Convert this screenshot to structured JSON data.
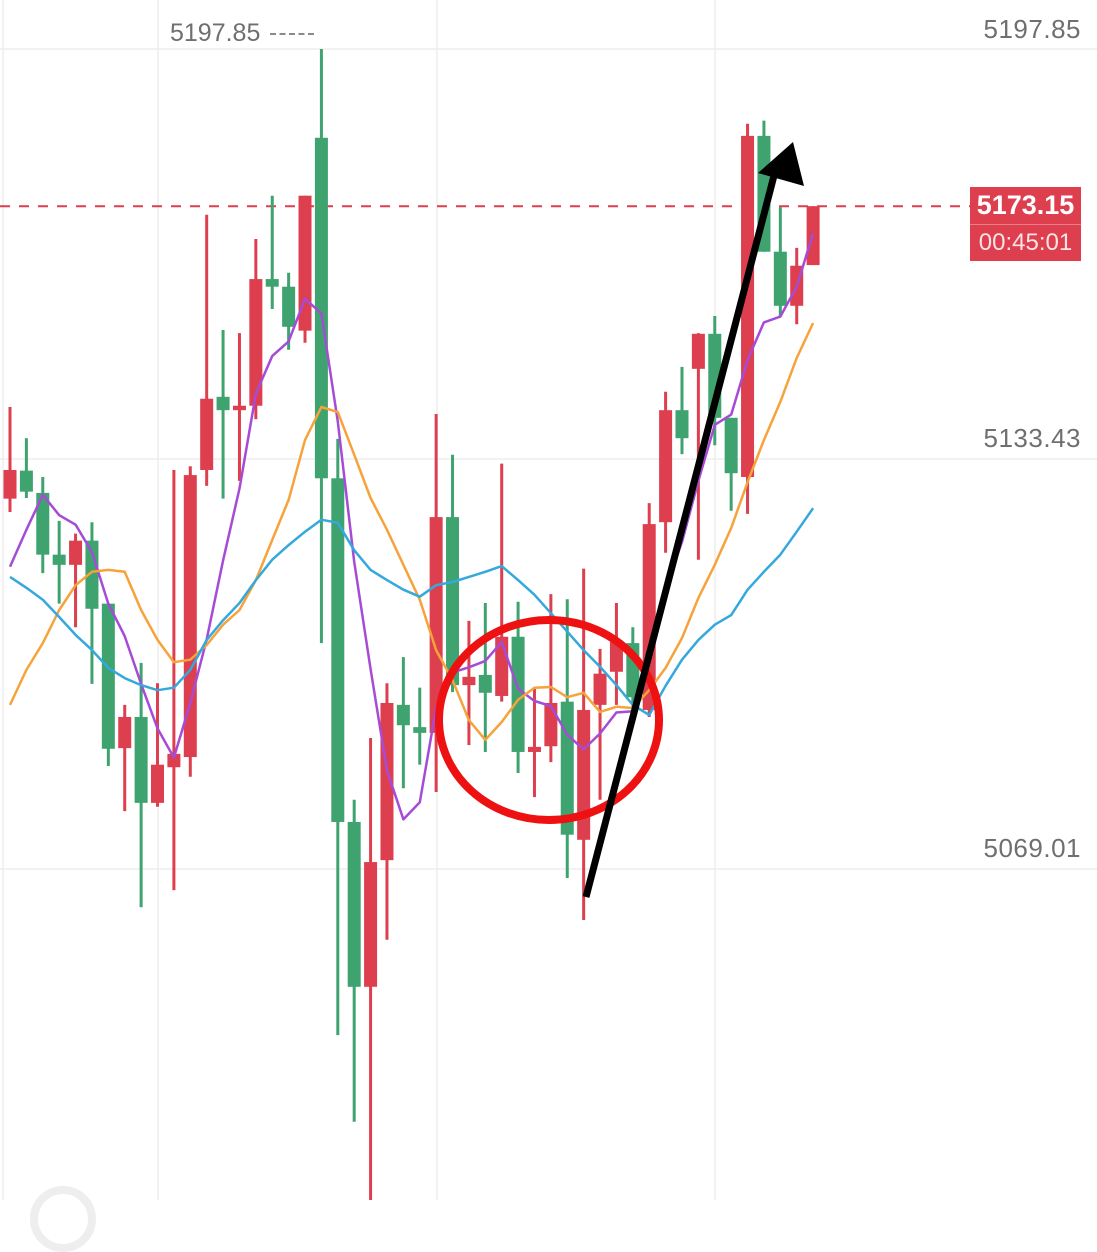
{
  "chart_data": {
    "type": "candlestick",
    "up_color": "#dd3f4e",
    "down_color": "#3fa36f",
    "y_ticks": [
      "5197.85",
      "5133.43",
      "5069.01"
    ],
    "ylim": [
      5010,
      5205
    ],
    "grid": true,
    "high_marker": "5197.85",
    "last_price": "5173.15",
    "countdown": "00:45:01",
    "candles_ohlc": [
      [
        5127.2,
        5141.6,
        5125.1,
        5131.7
      ],
      [
        5131.6,
        5136.7,
        5127.3,
        5128.3
      ],
      [
        5128.1,
        5130.6,
        5115.5,
        5118.4
      ],
      [
        5118.4,
        5123.7,
        5110.7,
        5116.8
      ],
      [
        5116.8,
        5121.7,
        5107.0,
        5120.6
      ],
      [
        5120.6,
        5123.5,
        5098.1,
        5109.9
      ],
      [
        5110.7,
        5110.7,
        5085.2,
        5087.9
      ],
      [
        5088.0,
        5094.8,
        5078.1,
        5092.9
      ],
      [
        5092.9,
        5101.4,
        5063.0,
        5079.4
      ],
      [
        5079.4,
        5098.2,
        5078.8,
        5085.4
      ],
      [
        5085.0,
        5131.7,
        5065.7,
        5087.1
      ],
      [
        5086.6,
        5132.3,
        5083.5,
        5130.9
      ],
      [
        5131.7,
        5171.8,
        5129.2,
        5142.9
      ],
      [
        5143.2,
        5153.7,
        5127.2,
        5141.1
      ],
      [
        5141.1,
        5153.2,
        5130.0,
        5141.8
      ],
      [
        5141.8,
        5168.0,
        5139.7,
        5161.7
      ],
      [
        5161.7,
        5174.8,
        5157.0,
        5160.5
      ],
      [
        5160.5,
        5162.7,
        5150.6,
        5154.2
      ],
      [
        5153.6,
        5174.8,
        5151.7,
        5174.8
      ],
      [
        5183.9,
        5197.85,
        5104.5,
        5130.4
      ],
      [
        5130.4,
        5136.6,
        5042.9,
        5076.4
      ],
      [
        5076.4,
        5079.9,
        5029.3,
        5050.5
      ],
      [
        5050.5,
        5089.6,
        5016.2,
        5070.1
      ],
      [
        5070.4,
        5098.2,
        5057.9,
        5095.1
      ],
      [
        5094.8,
        5102.3,
        5081.7,
        5091.6
      ],
      [
        5091.3,
        5097.5,
        5085.4,
        5090.4
      ],
      [
        5090.4,
        5140.5,
        5081.1,
        5124.3
      ],
      [
        5124.3,
        5134.1,
        5096.8,
        5097.9
      ],
      [
        5097.9,
        5108.0,
        5088.5,
        5099.2
      ],
      [
        5099.5,
        5110.8,
        5087.4,
        5096.7
      ],
      [
        5096.2,
        5132.7,
        5095.3,
        5105.5
      ],
      [
        5105.5,
        5111.0,
        5084.1,
        5087.4
      ],
      [
        5087.4,
        5097.3,
        5080.3,
        5088.2
      ],
      [
        5088.3,
        5112.2,
        5085.8,
        5095.1
      ],
      [
        5095.3,
        5111.4,
        5067.6,
        5074.4
      ],
      [
        5073.6,
        5116.2,
        5061.0,
        5094.0
      ],
      [
        5094.8,
        5103.6,
        5079.9,
        5099.7
      ],
      [
        5100.0,
        5110.8,
        5094.8,
        5104.7
      ],
      [
        5104.5,
        5107.0,
        5092.9,
        5096.0
      ],
      [
        5094.0,
        5126.5,
        5092.9,
        5123.2
      ],
      [
        5123.5,
        5144.0,
        5118.7,
        5141.1
      ],
      [
        5141.1,
        5147.9,
        5134.2,
        5136.7
      ],
      [
        5147.6,
        5153.2,
        5117.6,
        5153.1
      ],
      [
        5153.1,
        5155.9,
        5135.6,
        5139.9
      ],
      [
        5139.9,
        5139.9,
        5125.3,
        5131.2
      ],
      [
        5130.6,
        5186.1,
        5124.8,
        5184.2
      ],
      [
        5184.2,
        5186.6,
        5166.0,
        5166.0
      ],
      [
        5166.0,
        5173.0,
        5155.9,
        5157.5
      ],
      [
        5157.5,
        5166.6,
        5154.6,
        5163.8
      ],
      [
        5163.9,
        5173.15,
        5163.9,
        5173.15
      ]
    ],
    "series": [
      {
        "color": "#a64bd6",
        "values": [
          5116.5,
          5122.3,
          5127.8,
          5124.6,
          5123.1,
          5118.8,
          5110.7,
          5105.6,
          5098.1,
          5091.1,
          5086.5,
          5095.1,
          5105.1,
          5117.5,
          5128.8,
          5143.7,
          5149.6,
          5151.9,
          5158.6,
          5156.3,
          5139.3,
          5117.3,
          5100.4,
          5084.5,
          5076.8,
          5079.5,
          5094.3,
          5099.9,
          5100.7,
          5101.7,
          5104.7,
          5097.3,
          5095.4,
          5094.6,
          5090.1,
          5087.8,
          5090.3,
          5093.6,
          5093.8,
          5103.5,
          5113.0,
          5120.4,
          5130.0,
          5138.8,
          5140.4,
          5149.0,
          5154.9,
          5155.8,
          5160.5,
          5168.9
        ]
      },
      {
        "color": "#f5a33a",
        "values": [
          5094.8,
          5100.3,
          5104.5,
          5109.7,
          5113.6,
          5115.7,
          5116.0,
          5115.7,
          5109.7,
          5105.0,
          5101.5,
          5101.9,
          5104.2,
          5107.4,
          5109.7,
          5114.4,
          5120.7,
          5127.0,
          5136.4,
          5141.6,
          5140.8,
          5134.1,
          5127.3,
          5122.3,
          5116.8,
          5111.3,
          5103.4,
          5098.7,
          5092.4,
          5089.3,
          5092.1,
          5095.6,
          5097.5,
          5097.6,
          5096.0,
          5096.7,
          5093.7,
          5094.5,
          5094.3,
          5097.1,
          5100.6,
          5105.3,
          5111.6,
          5116.8,
          5122.6,
          5129.8,
          5136.4,
          5142.4,
          5149.3,
          5154.8
        ]
      },
      {
        "color": "#35a8dc",
        "values": [
          5114.9,
          5113.2,
          5111.3,
          5108.6,
          5105.8,
          5103.4,
          5100.6,
          5099.0,
          5097.9,
          5097.1,
          5097.5,
          5100.3,
          5105.0,
          5108.1,
          5110.8,
          5114.4,
          5117.6,
          5119.9,
          5122.0,
          5123.9,
          5123.4,
          5119.1,
          5116.0,
          5114.4,
          5112.9,
          5111.8,
          5113.6,
          5114.1,
          5114.9,
          5115.7,
          5116.6,
          5114.4,
          5112.1,
          5109.2,
          5106.3,
          5103.4,
          5100.8,
          5097.9,
          5094.8,
          5093.2,
          5097.8,
          5101.9,
          5105.0,
          5107.4,
          5108.9,
          5112.9,
          5115.7,
          5118.4,
          5122.0,
          5125.7
        ]
      }
    ],
    "annotations": [
      {
        "type": "ellipse",
        "color": "#ee1111"
      },
      {
        "type": "arrow",
        "color": "#000000"
      }
    ]
  }
}
